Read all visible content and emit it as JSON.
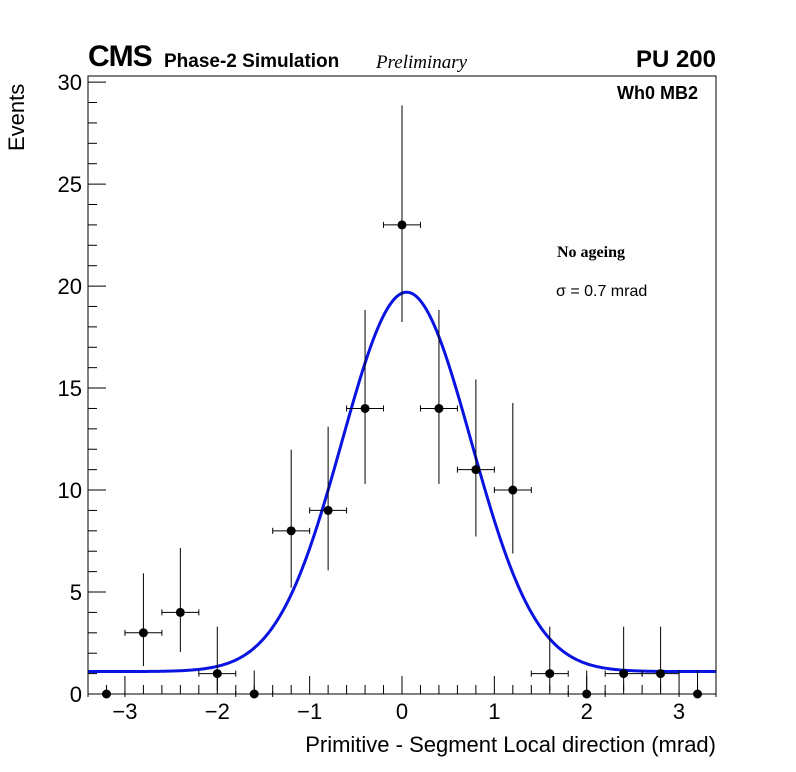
{
  "header": {
    "experiment": "CMS",
    "subtitle": "Phase-2 Simulation",
    "status": "Preliminary",
    "pileup": "PU 200"
  },
  "annotations": {
    "station": "Wh0 MB2",
    "condition": "No ageing",
    "resolution": "σ = 0.7 mrad"
  },
  "chart_data": {
    "type": "scatter",
    "title": "",
    "xlabel": "Primitive - Segment Local direction (mrad)",
    "ylabel": "Events",
    "xlim": [
      -3.4,
      3.4
    ],
    "ylim": [
      0,
      30.3
    ],
    "x_ticks": [
      -3,
      -2,
      -1,
      0,
      1,
      2,
      3
    ],
    "x_tick_labels": [
      "−3",
      "−2",
      "−1",
      "0",
      "1",
      "2",
      "3"
    ],
    "y_ticks": [
      0,
      5,
      10,
      15,
      20,
      25,
      30
    ],
    "y_tick_labels": [
      "0",
      "5",
      "10",
      "15",
      "20",
      "25",
      "30"
    ],
    "series": [
      {
        "name": "Simulation",
        "marker": "circle",
        "color": "#000000",
        "x": [
          -3.2,
          -2.8,
          -2.4,
          -2.0,
          -1.6,
          -1.2,
          -0.8,
          -0.4,
          0.0,
          0.4,
          0.8,
          1.2,
          1.6,
          2.0,
          2.4,
          2.8,
          3.2
        ],
        "y": [
          0,
          3,
          4,
          1,
          0,
          8,
          9,
          14,
          23,
          14,
          11,
          10,
          1,
          0,
          1,
          1,
          0
        ],
        "x_err": 0.2,
        "y_err_low": [
          0,
          1.63,
          1.94,
          0.83,
          0,
          2.79,
          2.94,
          3.7,
          4.76,
          3.7,
          3.28,
          3.11,
          0.83,
          0,
          0.83,
          0.83,
          0
        ],
        "y_err_high": [
          0,
          2.92,
          3.16,
          2.3,
          1.15,
          3.98,
          4.11,
          4.83,
          5.86,
          4.83,
          4.42,
          4.27,
          2.3,
          1.15,
          2.3,
          2.3,
          1.15
        ]
      }
    ],
    "fit": {
      "name": "Gaussian fit",
      "function": "gaussian + constant",
      "amplitude": 18.6,
      "mean": 0.05,
      "sigma": 0.7,
      "constant": 1.1,
      "color": "#0a14e0"
    }
  }
}
